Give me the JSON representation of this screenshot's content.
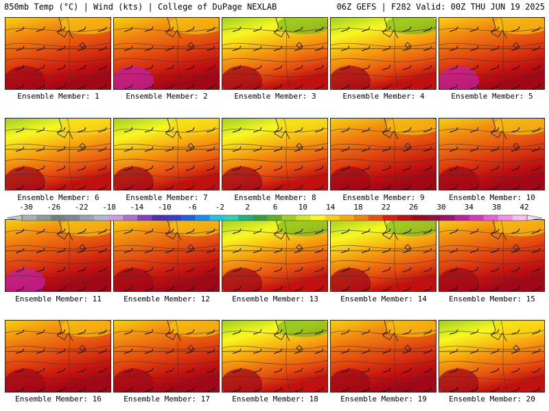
{
  "header": {
    "left": "850mb Temp (°C) | Wind (kts) | College of DuPage NEXLAB",
    "right": "06Z GEFS | F282 Valid: 00Z THU JUN 19 2025"
  },
  "colorbar": {
    "ticks": [
      "-30",
      "-26",
      "-22",
      "-18",
      "-14",
      "-10",
      "-6",
      "-2",
      "2",
      "6",
      "10",
      "14",
      "18",
      "22",
      "26",
      "30",
      "34",
      "38",
      "42"
    ],
    "colors": [
      "#a8b0b0",
      "#8c9a9a",
      "#6e8080",
      "#808898",
      "#9aa0b8",
      "#b0b8d0",
      "#d098e0",
      "#b070d0",
      "#8040c0",
      "#5030b0",
      "#3040c0",
      "#2060e0",
      "#1090f0",
      "#20c0e0",
      "#30d0b0",
      "#20b080",
      "#30a040",
      "#60b020",
      "#a0d020",
      "#d0e820",
      "#f8f820",
      "#f8d010",
      "#f8a810",
      "#f08010",
      "#e85010",
      "#d82010",
      "#c01010",
      "#a00818",
      "#901040",
      "#a01070",
      "#c020a0",
      "#d838c0",
      "#e860d8",
      "#f090e8",
      "#f8c0f0"
    ]
  },
  "panels": [
    {
      "label": "Ensemble Member: 1",
      "warm": 0.75
    },
    {
      "label": "Ensemble Member: 2",
      "warm": 0.85
    },
    {
      "label": "Ensemble Member: 3",
      "warm": 0.55
    },
    {
      "label": "Ensemble Member: 4",
      "warm": 0.5
    },
    {
      "label": "Ensemble Member: 5",
      "warm": 0.9
    },
    {
      "label": "Ensemble Member: 6",
      "warm": 0.7
    },
    {
      "label": "Ensemble Member: 7",
      "warm": 0.7
    },
    {
      "label": "Ensemble Member: 8",
      "warm": 0.65
    },
    {
      "label": "Ensemble Member: 9",
      "warm": 0.8
    },
    {
      "label": "Ensemble Member: 10",
      "warm": 0.75
    },
    {
      "label": "Ensemble Member: 11",
      "warm": 0.85
    },
    {
      "label": "Ensemble Member: 12",
      "warm": 0.8
    },
    {
      "label": "Ensemble Member: 13",
      "warm": 0.6
    },
    {
      "label": "Ensemble Member: 14",
      "warm": 0.55
    },
    {
      "label": "Ensemble Member: 15",
      "warm": 0.75
    },
    {
      "label": "Ensemble Member: 16",
      "warm": 0.75
    },
    {
      "label": "Ensemble Member: 17",
      "warm": 0.8
    },
    {
      "label": "Ensemble Member: 18",
      "warm": 0.6
    },
    {
      "label": "Ensemble Member: 19",
      "warm": 0.8
    },
    {
      "label": "Ensemble Member: 20",
      "warm": 0.7
    }
  ]
}
